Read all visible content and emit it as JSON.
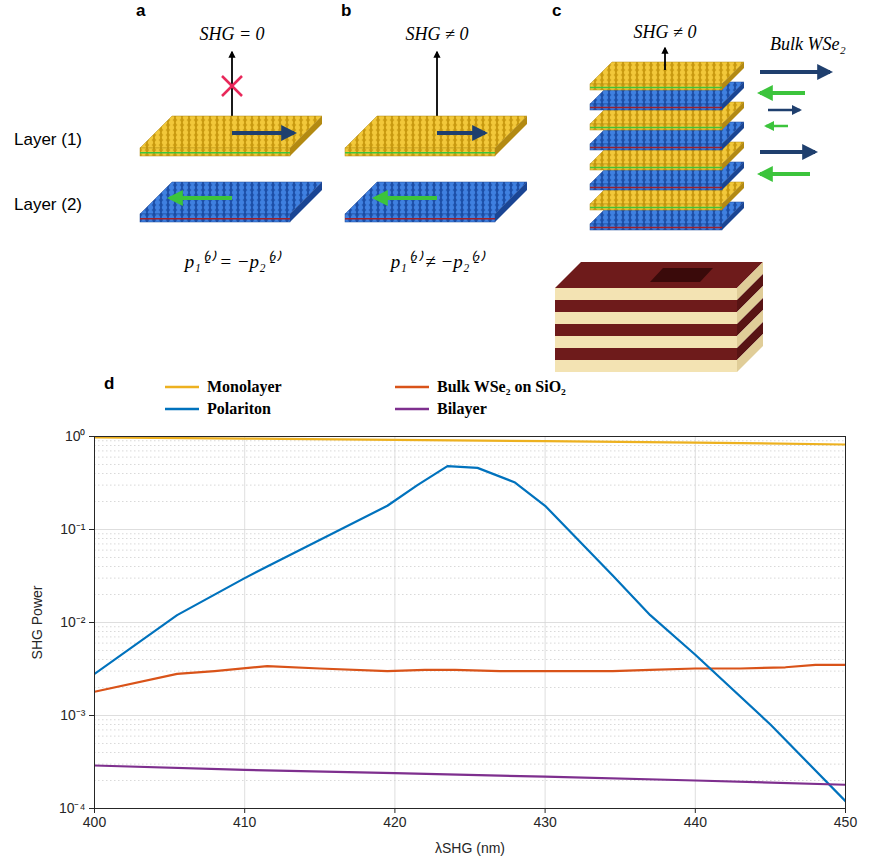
{
  "diagram": {
    "panels": [
      {
        "letter": "a",
        "output": "SHG = 0",
        "blocked": true,
        "formula": "p₁⁽²⁾ = −p₂⁽²⁾"
      },
      {
        "letter": "b",
        "output": "SHG ≠ 0",
        "blocked": false,
        "formula": "p₁⁽²⁾ ≠ −p₂⁽²⁾"
      },
      {
        "letter": "c",
        "output": "SHG ≠ 0",
        "blocked": false,
        "material": "Bulk WSe₂"
      }
    ],
    "layer_labels": [
      "Layer (1)",
      "Layer (2)"
    ]
  },
  "chart_data": {
    "type": "line",
    "panel_label": "d",
    "xlabel": "λSHG (nm)",
    "ylabel": "SHG Power",
    "xlim": [
      400,
      450
    ],
    "xticks": [
      400,
      410,
      420,
      430,
      440,
      450
    ],
    "ylim": [
      0.0001,
      1
    ],
    "yticks": [
      {
        "value": 0.0001,
        "label": "10⁻⁴"
      },
      {
        "value": 0.001,
        "label": "10⁻³"
      },
      {
        "value": 0.01,
        "label": "10⁻²"
      },
      {
        "value": 0.1,
        "label": "10⁻¹"
      },
      {
        "value": 1,
        "label": "10⁰"
      }
    ],
    "log": "y",
    "grid": true,
    "legend": "top",
    "series": [
      {
        "name": "Monolayer",
        "color": "#EDB120",
        "x": [
          400,
          410,
          420,
          430,
          440,
          450
        ],
        "values": [
          0.98,
          0.95,
          0.92,
          0.89,
          0.86,
          0.82
        ]
      },
      {
        "name": "Bulk WSe₂ on SiO₂",
        "color": "#D95319",
        "x": [
          400,
          405.5,
          408,
          411.5,
          415,
          419.5,
          422,
          424,
          427,
          430,
          434.5,
          437,
          440,
          443,
          446,
          448,
          450
        ],
        "values": [
          0.0018,
          0.0028,
          0.003,
          0.0034,
          0.0032,
          0.003,
          0.0031,
          0.0031,
          0.003,
          0.003,
          0.003,
          0.0031,
          0.0032,
          0.0032,
          0.0033,
          0.0035,
          0.0035
        ]
      },
      {
        "name": "Polariton",
        "color": "#0072BD",
        "x": [
          400,
          405.5,
          410,
          411.5,
          419.5,
          421.5,
          423.5,
          425.5,
          428,
          430,
          434.5,
          437,
          440,
          445,
          450
        ],
        "values": [
          0.0028,
          0.012,
          0.03,
          0.04,
          0.18,
          0.3,
          0.48,
          0.46,
          0.32,
          0.18,
          0.032,
          0.012,
          0.0045,
          0.0008,
          0.00012
        ]
      },
      {
        "name": "Bilayer",
        "color": "#7E2F8E",
        "x": [
          400,
          410,
          420,
          430,
          440,
          450
        ],
        "values": [
          0.00029,
          0.00026,
          0.00024,
          0.00022,
          0.0002,
          0.00018
        ]
      }
    ]
  }
}
